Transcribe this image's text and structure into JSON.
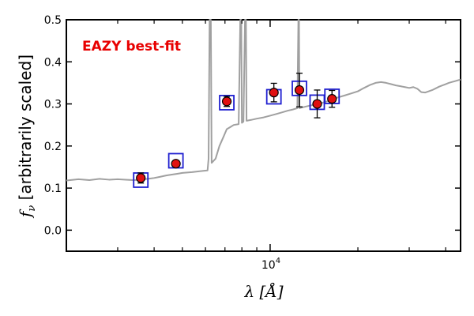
{
  "chart_data": {
    "type": "scatter",
    "title": "",
    "annotation": "EAZY best-fit",
    "xlabel": "λ [Å]",
    "ylabel": "f_ν [arbitrarily scaled]",
    "xscale": "log",
    "xlim": [
      2000,
      45000
    ],
    "ylim": [
      -0.05,
      0.5
    ],
    "yticks": [
      "0.0",
      "0.1",
      "0.2",
      "0.3",
      "0.4",
      "0.5"
    ],
    "xtick_labels": [
      "10^4"
    ],
    "grid": false,
    "colors": {
      "spectrum": "#a0a0a0",
      "model_box": "#1f1fd0",
      "observed_point": "#e01010",
      "annotation": "#e80000",
      "axes": "#000000"
    },
    "observed": [
      {
        "x": 3600,
        "y": 0.124,
        "err": 0.012
      },
      {
        "x": 4750,
        "y": 0.158,
        "err": 0.006
      },
      {
        "x": 7100,
        "y": 0.306,
        "err": 0.012
      },
      {
        "x": 10300,
        "y": 0.327,
        "err": 0.022
      },
      {
        "x": 12600,
        "y": 0.333,
        "err": 0.04
      },
      {
        "x": 14500,
        "y": 0.3,
        "err": 0.033
      },
      {
        "x": 16300,
        "y": 0.312,
        "err": 0.02
      }
    ],
    "model_photometry": [
      {
        "x": 3600,
        "y": 0.119
      },
      {
        "x": 4750,
        "y": 0.165
      },
      {
        "x": 7100,
        "y": 0.303
      },
      {
        "x": 10300,
        "y": 0.317
      },
      {
        "x": 12600,
        "y": 0.337
      },
      {
        "x": 14500,
        "y": 0.304
      },
      {
        "x": 16300,
        "y": 0.318
      }
    ],
    "spectrum": [
      [
        2000,
        0.118
      ],
      [
        2200,
        0.121
      ],
      [
        2400,
        0.119
      ],
      [
        2600,
        0.122
      ],
      [
        2800,
        0.12
      ],
      [
        3000,
        0.121
      ],
      [
        3200,
        0.12
      ],
      [
        3400,
        0.119
      ],
      [
        3600,
        0.12
      ],
      [
        3800,
        0.122
      ],
      [
        4000,
        0.124
      ],
      [
        4200,
        0.127
      ],
      [
        4400,
        0.13
      ],
      [
        4600,
        0.132
      ],
      [
        4800,
        0.134
      ],
      [
        5000,
        0.136
      ],
      [
        5400,
        0.138
      ],
      [
        5900,
        0.141
      ],
      [
        6100,
        0.142
      ],
      [
        6150,
        0.17
      ],
      [
        6200,
        0.5
      ],
      [
        6260,
        0.5
      ],
      [
        6300,
        0.16
      ],
      [
        6500,
        0.17
      ],
      [
        6700,
        0.2
      ],
      [
        6900,
        0.22
      ],
      [
        7100,
        0.24
      ],
      [
        7300,
        0.245
      ],
      [
        7500,
        0.25
      ],
      [
        7800,
        0.252
      ],
      [
        7900,
        0.5
      ],
      [
        7960,
        0.5
      ],
      [
        8000,
        0.255
      ],
      [
        8100,
        0.258
      ],
      [
        8200,
        0.5
      ],
      [
        8260,
        0.5
      ],
      [
        8300,
        0.26
      ],
      [
        8600,
        0.262
      ],
      [
        9000,
        0.265
      ],
      [
        9500,
        0.268
      ],
      [
        10000,
        0.272
      ],
      [
        10500,
        0.276
      ],
      [
        11000,
        0.28
      ],
      [
        11500,
        0.284
      ],
      [
        12000,
        0.287
      ],
      [
        12400,
        0.29
      ],
      [
        12500,
        0.5
      ],
      [
        12560,
        0.5
      ],
      [
        12600,
        0.29
      ],
      [
        13500,
        0.295
      ],
      [
        15000,
        0.302
      ],
      [
        16000,
        0.308
      ],
      [
        17000,
        0.315
      ],
      [
        18000,
        0.32
      ],
      [
        19000,
        0.325
      ],
      [
        20000,
        0.33
      ],
      [
        21000,
        0.338
      ],
      [
        22000,
        0.345
      ],
      [
        23000,
        0.35
      ],
      [
        24000,
        0.352
      ],
      [
        25000,
        0.35
      ],
      [
        26000,
        0.347
      ],
      [
        27000,
        0.344
      ],
      [
        28000,
        0.342
      ],
      [
        29000,
        0.34
      ],
      [
        30000,
        0.338
      ],
      [
        31000,
        0.34
      ],
      [
        32000,
        0.336
      ],
      [
        33000,
        0.328
      ],
      [
        34000,
        0.327
      ],
      [
        35000,
        0.33
      ],
      [
        36000,
        0.333
      ],
      [
        37000,
        0.337
      ],
      [
        38000,
        0.341
      ],
      [
        39000,
        0.344
      ],
      [
        40000,
        0.347
      ],
      [
        41000,
        0.35
      ],
      [
        42000,
        0.352
      ],
      [
        43000,
        0.354
      ],
      [
        44000,
        0.356
      ],
      [
        45000,
        0.358
      ]
    ]
  }
}
